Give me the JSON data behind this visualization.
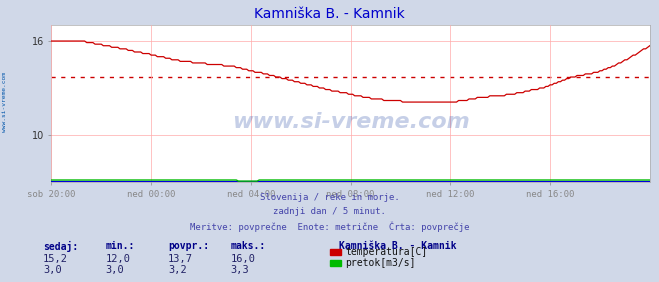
{
  "title": "Kamniška B. - Kamnik",
  "title_color": "#0000cc",
  "bg_color": "#d0d8e8",
  "plot_bg_color": "#ffffff",
  "grid_color": "#ffaaaa",
  "watermark_text": "www.si-vreme.com",
  "watermark_color": "#3355aa",
  "watermark_alpha": 0.28,
  "subtitle_lines": [
    "Slovenija / reke in morje.",
    "zadnji dan / 5 minut.",
    "Meritve: povprečne  Enote: metrične  Črta: povprečje"
  ],
  "subtitle_color": "#4444aa",
  "xticklabels": [
    "sob 20:00",
    "ned 00:00",
    "ned 04:00",
    "ned 08:00",
    "ned 12:00",
    "ned 16:00"
  ],
  "n_points": 289,
  "ylim_lo": 7.0,
  "ylim_hi": 17.0,
  "ytick_lo": 10,
  "ytick_hi": 16,
  "temp_avg": 13.7,
  "temp_color": "#cc0000",
  "flow_color": "#00bb00",
  "height_color": "#0000dd",
  "avg_line_color": "#cc0000",
  "legend_title": "Kamniška B. - Kamnik",
  "legend_title_color": "#000088",
  "headers": [
    "sedaj:",
    "min.:",
    "povpr.:",
    "maks.:"
  ],
  "temp_values": [
    "15,2",
    "12,0",
    "13,7",
    "16,0"
  ],
  "flow_values": [
    "3,0",
    "3,0",
    "3,2",
    "3,3"
  ],
  "series_names": [
    "temperatura[C]",
    "pretok[m3/s]"
  ],
  "series_colors": [
    "#cc0000",
    "#00bb00"
  ],
  "sidebar_text": "www.si-vreme.com",
  "sidebar_color": "#0055aa"
}
